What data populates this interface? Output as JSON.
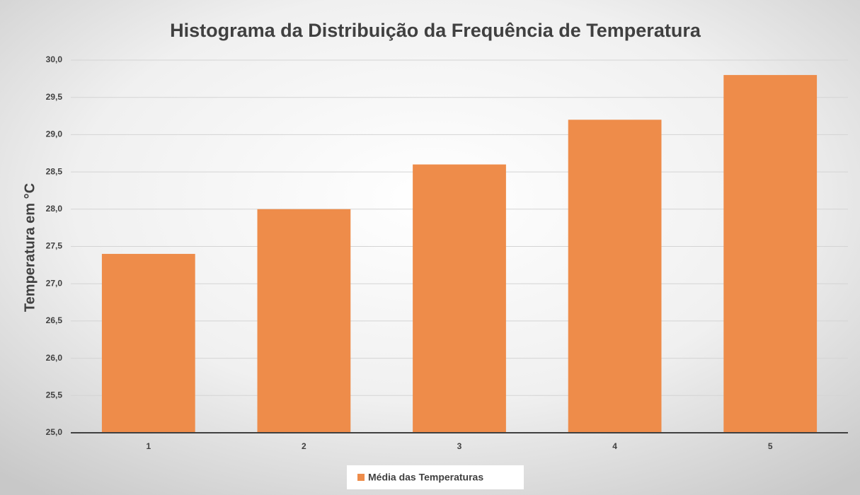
{
  "chart_data": {
    "type": "bar",
    "title": "Histograma da Distribuição da Frequência de Temperatura",
    "y_label": "Temperatura em °C",
    "categories": [
      "1",
      "2",
      "3",
      "4",
      "5"
    ],
    "series": [
      {
        "name": "Média das Temperaturas",
        "color": "#ee8c4a",
        "values": [
          27.4,
          28.0,
          28.6,
          29.2,
          29.8
        ]
      }
    ],
    "ylim": [
      25,
      30
    ],
    "yticks": [
      {
        "value": 25,
        "label": "25,0"
      },
      {
        "value": 25.5,
        "label": "25,5"
      },
      {
        "value": 26,
        "label": "26,0"
      },
      {
        "value": 26.5,
        "label": "26,5"
      },
      {
        "value": 27,
        "label": "27,0"
      },
      {
        "value": 27.5,
        "label": "27,5"
      },
      {
        "value": 28,
        "label": "28,0"
      },
      {
        "value": 28.5,
        "label": "28,5"
      },
      {
        "value": 29,
        "label": "29,0"
      },
      {
        "value": 29.5,
        "label": "29,5"
      },
      {
        "value": 30,
        "label": "30,0"
      }
    ],
    "grid": true
  }
}
